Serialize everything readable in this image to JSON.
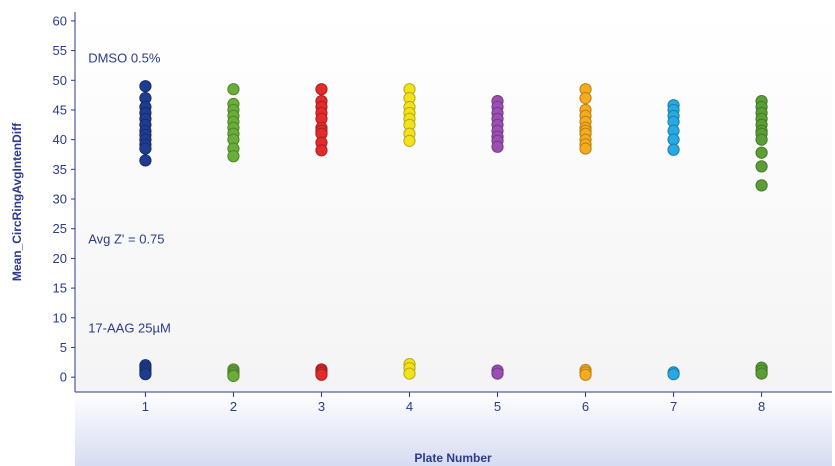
{
  "chart_data": {
    "type": "scatter",
    "title": "",
    "xlabel": "Plate Number",
    "ylabel": "Mean_CircRingAvgIntenDiff",
    "xlim": [
      0.2,
      8.8
    ],
    "ylim": [
      -2.5,
      61.5
    ],
    "x_ticks": [
      "1",
      "2",
      "3",
      "4",
      "5",
      "6",
      "7",
      "8"
    ],
    "y_ticks": [
      "0",
      "5",
      "10",
      "15",
      "20",
      "25",
      "30",
      "35",
      "40",
      "45",
      "50",
      "55",
      "60"
    ],
    "grid": false,
    "annotations": [
      {
        "text": "DMSO 0.5%",
        "x": 0.35,
        "y": 53
      },
      {
        "text": "Avg Z' = 0.75",
        "x": 0.35,
        "y": 22.5
      },
      {
        "text": "17-AAG 25µM",
        "x": 0.35,
        "y": 7.5
      }
    ],
    "series": [
      {
        "plate": 1,
        "color": "#1f3c8f",
        "values": [
          49,
          47,
          45.5,
          44.5,
          43.5,
          42.5,
          41.5,
          40.8,
          40,
          39.2,
          38.5,
          36.5,
          2,
          1.6,
          1.2,
          0.8,
          0.5
        ]
      },
      {
        "plate": 2,
        "color": "#6aae3a",
        "values": [
          48.5,
          46,
          45,
          44,
          43,
          42,
          41,
          40,
          38.5,
          37.2,
          1.3,
          1,
          0.7,
          0.4,
          0.2
        ]
      },
      {
        "plate": 3,
        "color": "#e32b2b",
        "values": [
          48.5,
          46.5,
          45.5,
          44.5,
          43.5,
          42,
          41.5,
          41,
          39.5,
          38.2,
          1.3,
          1,
          0.7,
          0.4
        ]
      },
      {
        "plate": 4,
        "color": "#f3e21b",
        "values": [
          48.5,
          47,
          45.5,
          44.5,
          43.5,
          42.5,
          41,
          39.8,
          2.2,
          1.5,
          0.6
        ]
      },
      {
        "plate": 5,
        "color": "#9b4fb3",
        "values": [
          46.5,
          45.5,
          44.5,
          43.5,
          42.5,
          41.5,
          40.5,
          39.8,
          38.8,
          1.1,
          0.6
        ]
      },
      {
        "plate": 6,
        "color": "#f5ab1d",
        "values": [
          48.5,
          47,
          45,
          44,
          43,
          42,
          41.5,
          41,
          40,
          39.2,
          38.5,
          1.2,
          0.8,
          0.4
        ]
      },
      {
        "plate": 7,
        "color": "#27a9e1",
        "values": [
          45.8,
          45,
          44,
          43,
          41.5,
          40,
          38.3,
          0.8,
          0.5
        ]
      },
      {
        "plate": 8,
        "color": "#5c9e36",
        "values": [
          46.5,
          45.5,
          44.5,
          43.5,
          42.5,
          41.5,
          41,
          40,
          37.8,
          35.5,
          32.3,
          1.6,
          1.1,
          0.6
        ]
      }
    ]
  }
}
